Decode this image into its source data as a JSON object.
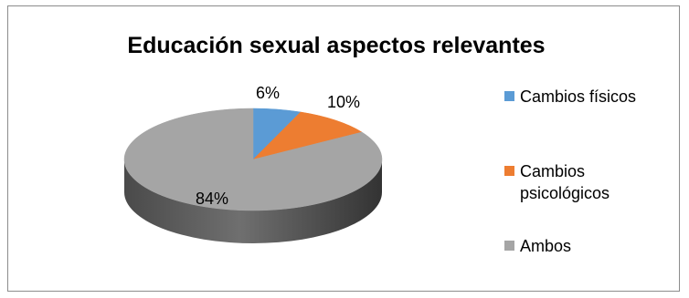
{
  "chart_data": {
    "type": "pie",
    "title": "Educación sexual aspectos relevantes",
    "categories": [
      "Cambios físicos",
      "Cambios psicológicos",
      "Ambos"
    ],
    "values": [
      6,
      10,
      84
    ],
    "data_labels": [
      "6%",
      "10%",
      "84%"
    ],
    "colors": [
      "#5B9BD5",
      "#ED7D31",
      "#A5A5A5"
    ],
    "style": "3d",
    "legend": "right"
  }
}
